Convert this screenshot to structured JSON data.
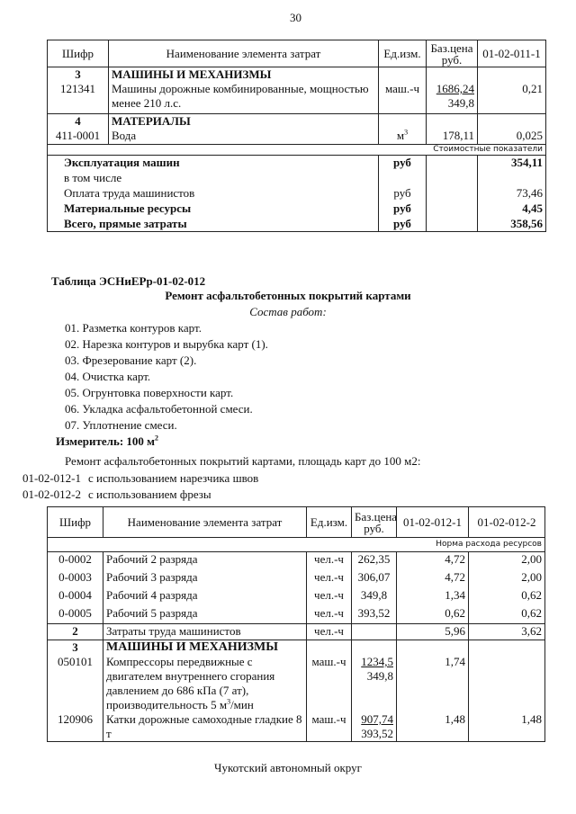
{
  "page_number": "30",
  "table1": {
    "headers": [
      "Шифр",
      "Наименование элемента затрат",
      "Ед.изм.",
      "Баз.цена руб.",
      "01-02-011-1"
    ],
    "sections": [
      {
        "num": "3",
        "title": "МАШИНЫ И МЕХАНИЗМЫ",
        "code": "121341",
        "name": "Машины дорожные комбинированные, мощностью менее 210 л.с.",
        "unit": "маш.-ч",
        "price": "1686,24",
        "price2": "349,8",
        "value": "0,21"
      },
      {
        "num": "4",
        "title": "МАТЕРИАЛЫ",
        "code": "411-0001",
        "name": "Вода",
        "unit": "м",
        "unit_sup": "3",
        "price": "178,11",
        "value": "0,025"
      }
    ],
    "cost_label": "Стоимостные показатели",
    "summary": [
      {
        "label": "Эксплуатация машин",
        "unit": "руб",
        "value": "354,11",
        "bold": true
      },
      {
        "label": "в том числе",
        "unit": "",
        "value": "",
        "bold": false
      },
      {
        "label": "Оплата труда машинистов",
        "unit": "руб",
        "value": "73,46",
        "bold": false
      },
      {
        "label": "Материальные ресурсы",
        "unit": "руб",
        "value": "4,45",
        "bold": true
      },
      {
        "label": "Всего, прямые затраты",
        "unit": "руб",
        "value": "358,56",
        "bold": true
      }
    ]
  },
  "section": {
    "table_title": "Таблица  ЭСНиЕРр-01-02-012",
    "heading": "Ремонт асфальтобетонных покрытий картами",
    "subheading": "Состав работ:",
    "works": [
      "01. Разметка контуров карт.",
      "02. Нарезка контуров и вырубка карт (1).",
      "03. Фрезерование карт (2).",
      "04. Очистка карт.",
      "05. Огрунтовка поверхности карт.",
      "06. Укладка асфальтобетонной смеси.",
      "07. Уплотнение смеси."
    ],
    "measure": "Измеритель: 100 м",
    "measure_sup": "2",
    "description": "Ремонт асфальтобетонных покрытий картами, площадь карт до 100 м2:",
    "variants": [
      {
        "code": "01-02-012-1",
        "text": "с использованием нарезчика швов"
      },
      {
        "code": "01-02-012-2",
        "text": "с использованием фрезы"
      }
    ]
  },
  "table2": {
    "headers": [
      "Шифр",
      "Наименование элемента затрат",
      "Ед.изм.",
      "Баз.цена руб.",
      "01-02-012-1",
      "01-02-012-2"
    ],
    "norm_label": "Норма расхода ресурсов",
    "workers": [
      {
        "code": "0-0002",
        "name": "Рабочий 2 разряда",
        "unit": "чел.-ч",
        "price": "262,35",
        "v1": "4,72",
        "v2": "2,00"
      },
      {
        "code": "0-0003",
        "name": "Рабочий 3 разряда",
        "unit": "чел.-ч",
        "price": "306,07",
        "v1": "4,72",
        "v2": "2,00"
      },
      {
        "code": "0-0004",
        "name": "Рабочий 4 разряда",
        "unit": "чел.-ч",
        "price": "349,8",
        "v1": "1,34",
        "v2": "0,62"
      },
      {
        "code": "0-0005",
        "name": "Рабочий 5 разряда",
        "unit": "чел.-ч",
        "price": "393,52",
        "v1": "0,62",
        "v2": "0,62"
      }
    ],
    "row2": {
      "code": "2",
      "name": "Затраты труда машинистов",
      "unit": "чел.-ч",
      "v1": "5,96",
      "v2": "3,62"
    },
    "machines": {
      "num": "3",
      "title": "МАШИНЫ И МЕХАНИЗМЫ",
      "items": [
        {
          "code": "050101",
          "name": "Компрессоры передвижные с двигателем внутреннего сгорания давлением до 686 кПа (7 ат), производительность 5 м",
          "name_sup": "3",
          "name_tail": "/мин",
          "unit": "маш.-ч",
          "price": "1234,5",
          "price2": "349,8",
          "v1": "1,74",
          "v2": ""
        },
        {
          "code": "120906",
          "name": "Катки дорожные самоходные гладкие 8 т",
          "unit": "маш.-ч",
          "price": "907,74",
          "price2": "393,52",
          "v1": "1,48",
          "v2": "1,48"
        }
      ]
    }
  },
  "footer": "Чукотский автономный округ"
}
